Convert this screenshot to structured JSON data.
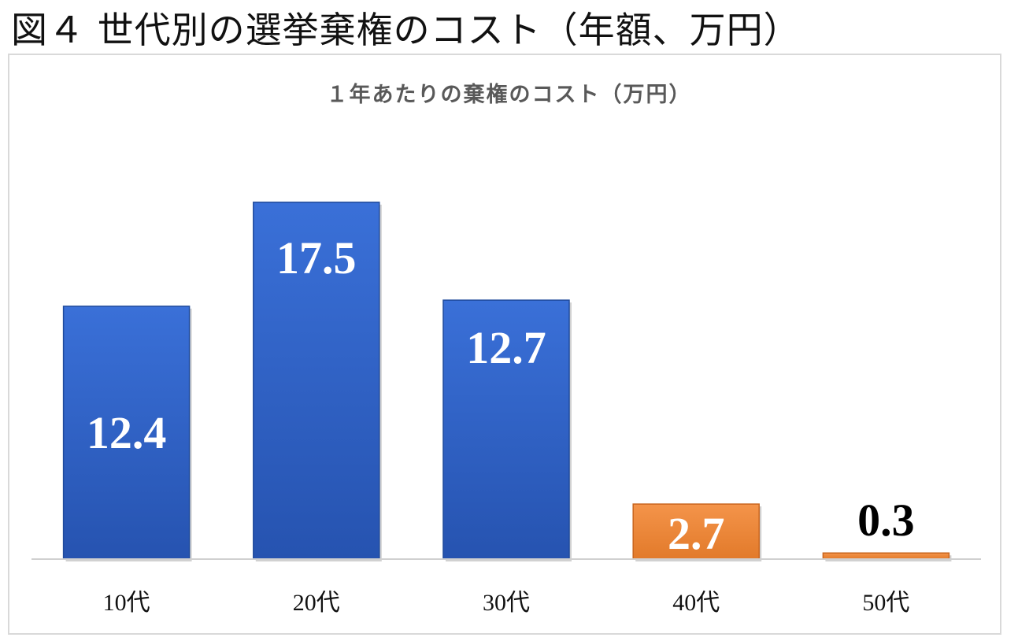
{
  "figure_title": "図４ 世代別の選挙棄権のコスト（年額、万円）",
  "chart_data": {
    "type": "bar",
    "title": "１年あたりの棄権のコスト（万円）",
    "categories": [
      "10代",
      "20代",
      "30代",
      "40代",
      "50代"
    ],
    "values": [
      12.4,
      17.5,
      12.7,
      2.7,
      0.3
    ],
    "data_labels": [
      "12.4",
      "17.5",
      "12.7",
      "2.7",
      "0.3"
    ],
    "bar_colors": [
      "#2d5fc4",
      "#2d5fc4",
      "#2d5fc4",
      "#ef8a3c",
      "#ef8a3c"
    ],
    "label_colors": [
      "#ffffff",
      "#ffffff",
      "#ffffff",
      "#ffffff",
      "#000000"
    ],
    "label_position": [
      "inside",
      "inside",
      "inside",
      "inside",
      "outside"
    ],
    "ylim": [
      0,
      19
    ],
    "grid": false,
    "legend": "none",
    "xlabel": "",
    "ylabel": ""
  }
}
